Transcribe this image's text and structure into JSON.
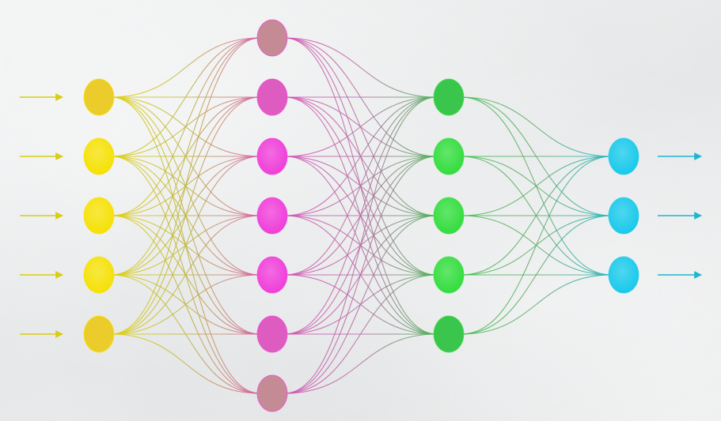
{
  "diagram": {
    "type": "neural-network",
    "layers": [
      {
        "nodes": 5,
        "color": "#f5e000",
        "edge_color": "#e6d700"
      },
      {
        "nodes": 7,
        "color": "#ef3ad8",
        "edge_color": "#d94fb8"
      },
      {
        "nodes": 5,
        "color": "#2fdc3a",
        "edge_color": "#39c24a"
      },
      {
        "nodes": 3,
        "color": "#14c8ea",
        "edge_color": "#21b8d3"
      }
    ],
    "input_arrow_color": "#d9cc15",
    "output_arrow_color": "#1fb4d0",
    "fully_connected": true
  }
}
